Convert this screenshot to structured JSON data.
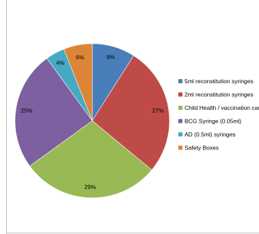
{
  "chart_data": {
    "type": "pie",
    "title": "",
    "start_angle_deg": -90,
    "slices": [
      {
        "label": "5ml reconstitution syringes",
        "value": 9,
        "value_label": "9%",
        "color": "#4a7ebb"
      },
      {
        "label": "2ml reconstitution syringes",
        "value": 27,
        "value_label": "27%",
        "color": "#be4b48"
      },
      {
        "label": "Child Health / vaccination card",
        "value": 29,
        "value_label": "29%",
        "color": "#98b954"
      },
      {
        "label": "BCG Syringe (0.05ml)",
        "value": 25,
        "value_label": "25%",
        "color": "#7d60a0"
      },
      {
        "label": "AD (0.5ml) syringes",
        "value": 4,
        "value_label": "4%",
        "color": "#46aac5"
      },
      {
        "label": "Safety Boxes",
        "value": 6,
        "value_label": "6%",
        "color": "#dc8537"
      }
    ],
    "legend_position": "right"
  }
}
